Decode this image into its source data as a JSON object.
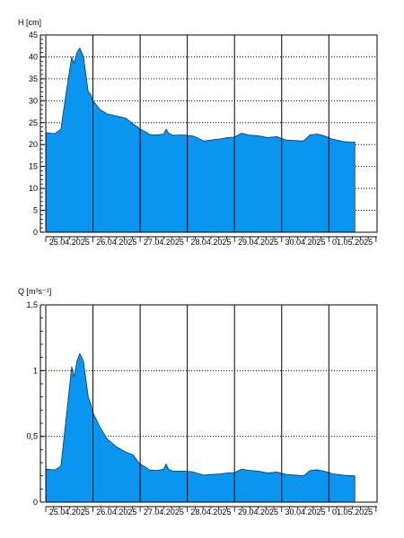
{
  "chart_data": [
    {
      "type": "area",
      "ylabel": "H [cm]",
      "ylim": [
        0,
        45
      ],
      "yticks": [
        0,
        5,
        10,
        15,
        20,
        25,
        30,
        35,
        40,
        45
      ],
      "ytick_labels": [
        "0",
        "5",
        "10",
        "15",
        "20",
        "25",
        "30",
        "35",
        "40",
        "45"
      ],
      "xlim_days": [
        0,
        7
      ],
      "date_labels": [
        "25.04.2025",
        "26.04.2025",
        "27.04.2025",
        "28.04.2025",
        "29.04.2025",
        "30.04.2025",
        "01.05.2025"
      ],
      "grid": true,
      "fill_color": "#0a96f0",
      "series": [
        {
          "x": [
            0,
            0.2,
            0.32,
            0.42,
            0.55,
            0.6,
            0.66,
            0.72,
            0.8,
            0.9,
            0.95,
            1.0,
            1.15,
            1.3,
            1.5,
            1.7,
            1.85,
            1.95,
            2.0,
            2.1,
            2.2,
            2.35,
            2.5,
            2.55,
            2.6,
            2.7,
            2.9,
            3.1,
            3.2,
            3.35,
            3.5,
            3.7,
            3.85,
            4.0,
            4.15,
            4.3,
            4.5,
            4.7,
            4.9,
            5.1,
            5.3,
            5.45,
            5.5,
            5.6,
            5.75,
            5.9,
            6.0,
            6.05,
            6.1,
            6.3,
            6.5,
            6.55
          ],
          "y": [
            22.7,
            22.5,
            23.5,
            31,
            40,
            38.5,
            41,
            42,
            40,
            32,
            31.5,
            30,
            28,
            27,
            26.5,
            26,
            24.7,
            24,
            23.5,
            23,
            22.3,
            22.2,
            22.4,
            23.5,
            22.6,
            22.1,
            22.2,
            22.0,
            21.6,
            20.8,
            21.0,
            21.3,
            21.6,
            21.7,
            22.6,
            22.2,
            22.0,
            21.6,
            21.8,
            21.0,
            20.9,
            20.8,
            21.2,
            22.2,
            22.4,
            22.0,
            21.6,
            21.3,
            21.2,
            20.7,
            20.5,
            20.6
          ]
        }
      ]
    },
    {
      "type": "area",
      "ylabel": "Q [m³s⁻¹]",
      "ylim": [
        0,
        1.5
      ],
      "yticks": [
        0,
        0.5,
        1,
        1.5
      ],
      "ytick_labels": [
        "0",
        "0,5",
        "1",
        "1,5"
      ],
      "xlim_days": [
        0,
        7
      ],
      "date_labels": [
        "25.04.2025",
        "26.04.2025",
        "27.04.2025",
        "28.04.2025",
        "29.04.2025",
        "30.04.2025",
        "01.05.2025"
      ],
      "grid": true,
      "fill_color": "#0a96f0",
      "series": [
        {
          "x": [
            0,
            0.2,
            0.32,
            0.42,
            0.55,
            0.6,
            0.66,
            0.72,
            0.8,
            0.9,
            0.95,
            1.0,
            1.15,
            1.3,
            1.5,
            1.7,
            1.85,
            1.95,
            2.0,
            2.1,
            2.2,
            2.35,
            2.5,
            2.55,
            2.6,
            2.7,
            2.9,
            3.1,
            3.2,
            3.35,
            3.5,
            3.7,
            3.85,
            4.0,
            4.15,
            4.3,
            4.5,
            4.7,
            4.9,
            5.1,
            5.3,
            5.45,
            5.5,
            5.6,
            5.75,
            5.9,
            6.0,
            6.05,
            6.1,
            6.3,
            6.5,
            6.55
          ],
          "y": [
            0.25,
            0.245,
            0.275,
            0.6,
            1.03,
            0.95,
            1.07,
            1.13,
            1.07,
            0.8,
            0.75,
            0.68,
            0.57,
            0.48,
            0.42,
            0.38,
            0.36,
            0.31,
            0.29,
            0.27,
            0.245,
            0.24,
            0.25,
            0.29,
            0.25,
            0.235,
            0.236,
            0.232,
            0.22,
            0.205,
            0.21,
            0.215,
            0.222,
            0.225,
            0.25,
            0.242,
            0.236,
            0.222,
            0.228,
            0.21,
            0.205,
            0.2,
            0.21,
            0.24,
            0.246,
            0.235,
            0.226,
            0.218,
            0.215,
            0.205,
            0.2,
            0.2
          ]
        }
      ]
    }
  ]
}
